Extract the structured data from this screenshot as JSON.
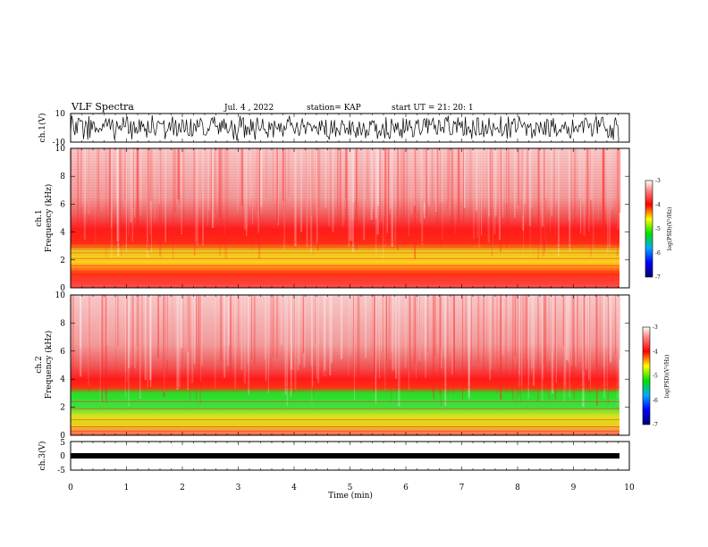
{
  "header": {
    "title": "VLF Spectra",
    "date": "Jul. 4 , 2022",
    "station": "station= KAP",
    "start": "start UT = 21: 20: 1"
  },
  "chart_data": [
    {
      "type": "line",
      "ylabel": "ch.1(V)",
      "ylim": [
        -10,
        10
      ],
      "yticks": [
        "10",
        "-10"
      ],
      "description_series": "noisy waveform"
    },
    {
      "type": "heatmap",
      "ylabel": "ch.1\nFrequency (kHz)",
      "ylim": [
        0,
        10
      ],
      "yticks": [
        "10",
        "8",
        "6",
        "4",
        "2",
        "0"
      ],
      "colorbar": {
        "label": "log(PSD)(V²/Hz)",
        "range": [
          -7,
          -3
        ],
        "ticks": [
          "-3",
          "-4",
          "-5",
          "-6",
          "-7"
        ]
      }
    },
    {
      "type": "heatmap",
      "ylabel": "ch.2\nFrequency (kHz)",
      "ylim": [
        0,
        10
      ],
      "yticks": [
        "10",
        "8",
        "6",
        "4",
        "2",
        "0"
      ],
      "colorbar": {
        "label": "log(PSD)(V²/Hz)",
        "range": [
          -7,
          -3
        ],
        "ticks": [
          "-3",
          "-4",
          "-5",
          "-6",
          "-7"
        ]
      }
    },
    {
      "type": "line",
      "ylabel": "ch.3(V)",
      "ylim": [
        -5,
        5
      ],
      "yticks": [
        "5",
        "0",
        "-5"
      ]
    }
  ],
  "xaxis": {
    "label": "Time (min)",
    "range": [
      0,
      10
    ],
    "ticks": [
      "0",
      "1",
      "2",
      "3",
      "4",
      "5",
      "6",
      "7",
      "8",
      "9",
      "10"
    ]
  },
  "colors": {
    "spec_top": "#f4a6a6",
    "spec_red": "#ff1a1a",
    "spec_yellow": "#e8e21a",
    "spec_green": "#22dd22",
    "trace": "#000000"
  }
}
